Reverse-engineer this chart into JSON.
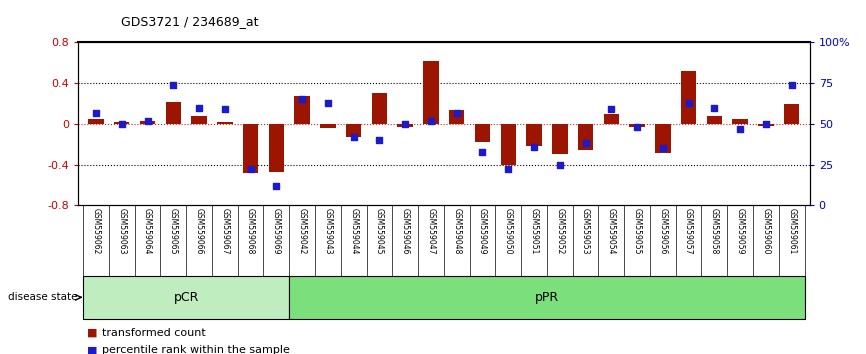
{
  "title": "GDS3721 / 234689_at",
  "samples": [
    "GSM559062",
    "GSM559063",
    "GSM559064",
    "GSM559065",
    "GSM559066",
    "GSM559067",
    "GSM559068",
    "GSM559069",
    "GSM559042",
    "GSM559043",
    "GSM559044",
    "GSM559045",
    "GSM559046",
    "GSM559047",
    "GSM559048",
    "GSM559049",
    "GSM559050",
    "GSM559051",
    "GSM559052",
    "GSM559053",
    "GSM559054",
    "GSM559055",
    "GSM559056",
    "GSM559057",
    "GSM559058",
    "GSM559059",
    "GSM559060",
    "GSM559061"
  ],
  "transformed_count": [
    0.05,
    0.02,
    0.03,
    0.22,
    0.08,
    0.02,
    -0.48,
    -0.47,
    0.27,
    -0.04,
    -0.13,
    0.3,
    -0.03,
    0.62,
    0.14,
    -0.18,
    -0.4,
    -0.22,
    -0.3,
    -0.26,
    0.1,
    -0.03,
    -0.29,
    0.52,
    0.08,
    0.05,
    -0.02,
    0.2
  ],
  "percentile_rank": [
    57,
    50,
    52,
    74,
    60,
    59,
    22,
    12,
    65,
    63,
    42,
    40,
    50,
    52,
    57,
    33,
    22,
    36,
    25,
    38,
    59,
    48,
    35,
    63,
    60,
    47,
    50,
    74
  ],
  "groups": [
    {
      "label": "pCR",
      "start": 0,
      "end": 8,
      "color": "#c0edc0"
    },
    {
      "label": "pPR",
      "start": 8,
      "end": 28,
      "color": "#7be07b"
    }
  ],
  "bar_color": "#9B1500",
  "dot_color": "#1B1BCC",
  "ylim_left": [
    -0.8,
    0.8
  ],
  "ylim_right": [
    0,
    100
  ],
  "yticks_left": [
    -0.8,
    -0.4,
    0.0,
    0.4,
    0.8
  ],
  "yticks_right": [
    0,
    25,
    50,
    75,
    100
  ],
  "ytick_labels_right": [
    "0",
    "25",
    "50",
    "75",
    "100%"
  ],
  "hlines_dotted": [
    0.4,
    -0.4
  ],
  "hline_zero_color": "#cc2222",
  "legend_transformed": "transformed count",
  "legend_percentile": "percentile rank within the sample",
  "disease_state_label": "disease state",
  "tick_label_color_left": "#cc0000",
  "tick_label_color_right": "#0000cc",
  "bg_color": "#ffffff",
  "gray_bg": "#cccccc"
}
